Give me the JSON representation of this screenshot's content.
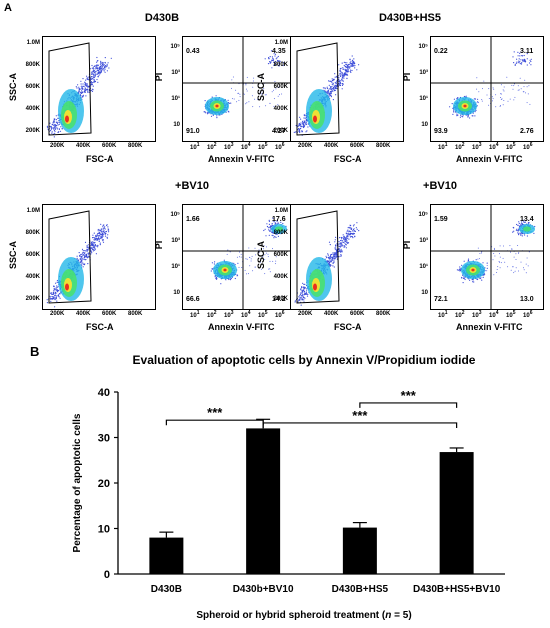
{
  "panel_labels": {
    "a": "A",
    "b": "B"
  },
  "flow": {
    "titles": [
      "D430B",
      "D430B+HS5",
      "+BV10",
      "+BV10"
    ],
    "scatter_xlabel": "FSC-A",
    "scatter_ylabel": "SSC-A",
    "scatter_xticks": [
      "200K",
      "400K",
      "600K",
      "800K"
    ],
    "scatter_yticks": [
      "1.0M",
      "800K",
      "600K",
      "400K",
      "200K"
    ],
    "annexin_xlabel": "Annexin V-FITC",
    "annexin_ylabel": "PI",
    "annexin_xticks": [
      "1",
      "2",
      "3",
      "4",
      "5",
      "6"
    ],
    "annexin_yticks": [
      "10⁵",
      "10³",
      "10¹",
      "10"
    ],
    "annexin_xticks_exp": [
      "10",
      "10",
      "10",
      "10",
      "10",
      "10"
    ],
    "quadrants": [
      {
        "ul": "0.43",
        "ur": "4.35",
        "ll": "91.0",
        "lr": "4.27"
      },
      {
        "ul": "0.22",
        "ur": "3.11",
        "ll": "93.9",
        "lr": "2.76"
      },
      {
        "ul": "1.66",
        "ur": "17.6",
        "ll": "66.6",
        "lr": "14.2"
      },
      {
        "ul": "1.59",
        "ur": "13.4",
        "ll": "72.1",
        "lr": "13.0"
      }
    ]
  },
  "chart_data": {
    "type": "bar",
    "title": "Evaluation of apoptotic cells by Annexin V/Propidium iodide",
    "xlabel": "Spheroid or hybrid spheroid treatment (n = 5)",
    "ylabel": "Percentage of apoptotic cells",
    "categories": [
      "D430B",
      "D430b+BV10",
      "D430B+HS5",
      "D430B+HS5+BV10"
    ],
    "values": [
      8.0,
      32.0,
      10.2,
      26.8
    ],
    "errors": [
      1.2,
      2.0,
      1.1,
      0.9
    ],
    "ylim": [
      0,
      40
    ],
    "yticks": [
      0,
      10,
      20,
      30,
      40
    ],
    "bar_color": "#000000",
    "significance": [
      {
        "from": 0,
        "to": 1,
        "label": "***"
      },
      {
        "from": 2,
        "to": 3,
        "label": "***"
      },
      {
        "from": 1,
        "to": 3,
        "label": "***"
      }
    ]
  }
}
